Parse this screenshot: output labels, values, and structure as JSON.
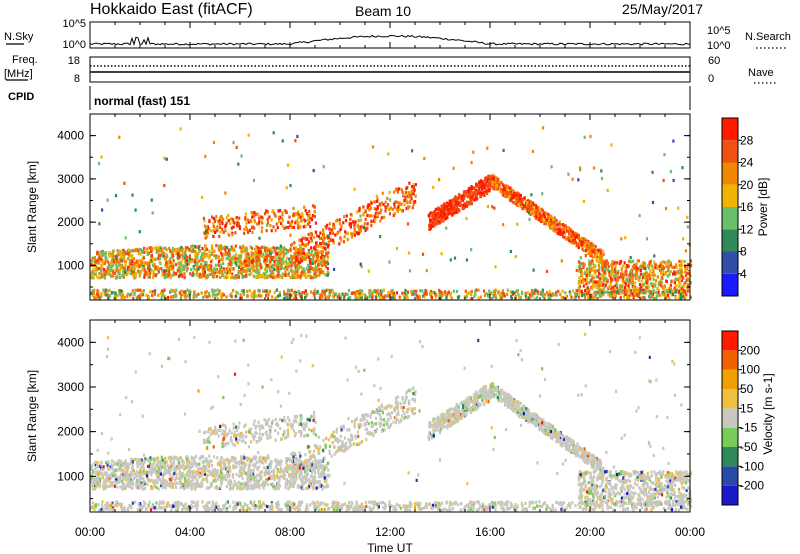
{
  "header": {
    "site": "Hokkaido East (fitACF)",
    "beam": "Beam 10",
    "date": "25/May/2017"
  },
  "colors": {
    "power_scale": [
      "#1a1aff",
      "#2f4fa8",
      "#2e8a59",
      "#6abf6a",
      "#f0b400",
      "#f08800",
      "#f05010",
      "#ff1a00"
    ],
    "velocity_scale": [
      "#1a1acc",
      "#2a4aa8",
      "#2e8a59",
      "#7acc5a",
      "#c8c8c0",
      "#f0c040",
      "#f0a000",
      "#f06000",
      "#ff1a00"
    ]
  },
  "chart_data": [
    {
      "type": "line",
      "panel": "noise",
      "left_labels": [
        "N.Sky",
        "10^5",
        "10^0"
      ],
      "right_labels": [
        "10^5",
        "10^0",
        "N.Search"
      ],
      "x_ticks": [
        "00:00",
        "04:00",
        "08:00",
        "12:00",
        "16:00",
        "20:00",
        "00:00"
      ]
    },
    {
      "type": "line",
      "panel": "frequency",
      "left_labels": [
        "Freq.",
        "[MHz]",
        "18",
        "8"
      ],
      "right_labels": [
        "60",
        "0",
        "Nave"
      ]
    },
    {
      "type": "table",
      "panel": "cpid",
      "label": "CPID",
      "value": "normal (fast) 151"
    },
    {
      "type": "heatmap",
      "panel": "power",
      "ylabel": "Slant Range [km]",
      "y_ticks": [
        "1000",
        "2000",
        "3000",
        "4000"
      ],
      "ylim": [
        200,
        4500
      ],
      "x_range_hours": [
        0,
        24
      ],
      "colorbar_label": "Power [dB]",
      "colorbar_ticks": [
        "4",
        "8",
        "12",
        "16",
        "20",
        "24",
        "28"
      ],
      "colorbar_range": [
        0,
        32
      ]
    },
    {
      "type": "heatmap",
      "panel": "velocity",
      "ylabel": "Slant Range [km]",
      "y_ticks": [
        "1000",
        "2000",
        "3000",
        "4000"
      ],
      "ylim": [
        200,
        4500
      ],
      "xlabel": "Time UT",
      "x_ticks": [
        "00:00",
        "04:00",
        "08:00",
        "12:00",
        "16:00",
        "20:00",
        "00:00"
      ],
      "x_range_hours": [
        0,
        24
      ],
      "colorbar_label": "Velocity [m s-1]",
      "colorbar_ticks": [
        "200",
        "100",
        "50",
        "15",
        "-15",
        "-50",
        "-100",
        "-200"
      ],
      "colorbar_range": [
        -250,
        250
      ]
    }
  ]
}
